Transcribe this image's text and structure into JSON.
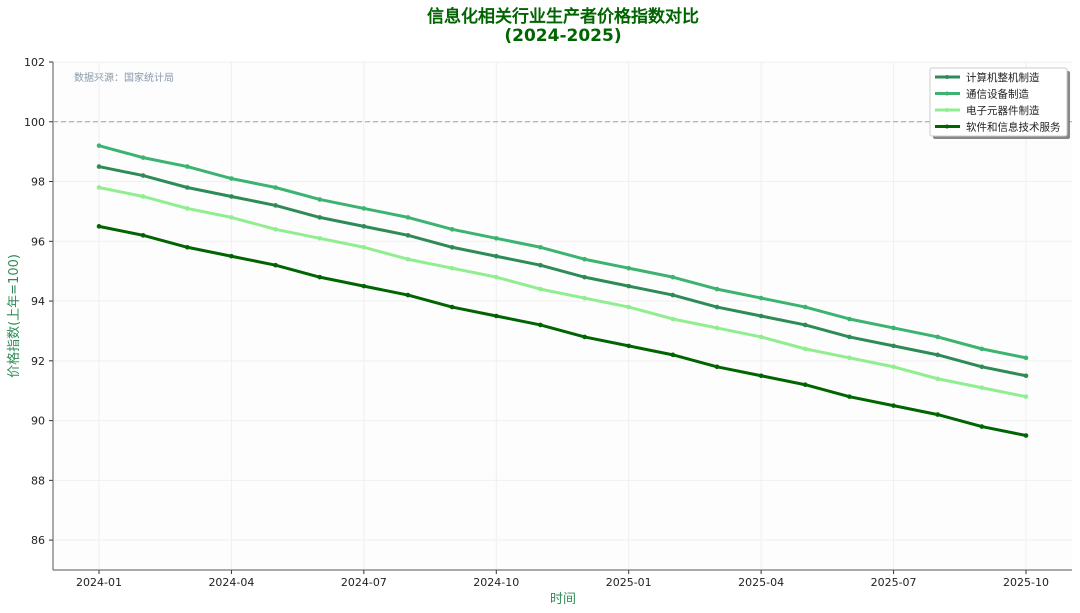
{
  "chart_data": {
    "type": "line",
    "title": "信息化相关行业生产者价格指数对比",
    "subtitle": "(2024-2025)",
    "xlabel": "时间",
    "ylabel": "价格指数(上年=100)",
    "annotation": "数据来源：国家统计局",
    "reference_line": 100,
    "ylim": [
      85,
      102
    ],
    "yticks": [
      86,
      88,
      90,
      92,
      94,
      96,
      98,
      100,
      102
    ],
    "x": [
      "2024-01",
      "2024-02",
      "2024-03",
      "2024-04",
      "2024-05",
      "2024-06",
      "2024-07",
      "2024-08",
      "2024-09",
      "2024-10",
      "2024-11",
      "2024-12",
      "2025-01",
      "2025-02",
      "2025-03",
      "2025-04",
      "2025-05",
      "2025-06",
      "2025-07",
      "2025-08",
      "2025-09",
      "2025-10"
    ],
    "xticks": [
      "2024-01",
      "2024-04",
      "2024-07",
      "2024-10",
      "2025-01",
      "2025-04",
      "2025-07",
      "2025-10"
    ],
    "grid": true,
    "legend_position": "top-right",
    "series": [
      {
        "name": "计算机整机制造",
        "color": "#2e8b57",
        "values": [
          98.5,
          98.2,
          97.8,
          97.5,
          97.2,
          96.8,
          96.5,
          96.2,
          95.8,
          95.5,
          95.2,
          94.8,
          94.5,
          94.2,
          93.8,
          93.5,
          93.2,
          92.8,
          92.5,
          92.2,
          91.8,
          91.5
        ]
      },
      {
        "name": "通信设备制造",
        "color": "#3cb371",
        "values": [
          99.2,
          98.8,
          98.5,
          98.1,
          97.8,
          97.4,
          97.1,
          96.8,
          96.4,
          96.1,
          95.8,
          95.4,
          95.1,
          94.8,
          94.4,
          94.1,
          93.8,
          93.4,
          93.1,
          92.8,
          92.4,
          92.1
        ]
      },
      {
        "name": "电子元器件制造",
        "color": "#90ee90",
        "values": [
          97.8,
          97.5,
          97.1,
          96.8,
          96.4,
          96.1,
          95.8,
          95.4,
          95.1,
          94.8,
          94.4,
          94.1,
          93.8,
          93.4,
          93.1,
          92.8,
          92.4,
          92.1,
          91.8,
          91.4,
          91.1,
          90.8
        ]
      },
      {
        "name": "软件和信息技术服务",
        "color": "#006400",
        "values": [
          96.5,
          96.2,
          95.8,
          95.5,
          95.2,
          94.8,
          94.5,
          94.2,
          93.8,
          93.5,
          93.2,
          92.8,
          92.5,
          92.2,
          91.8,
          91.5,
          91.2,
          90.8,
          90.5,
          90.2,
          89.8,
          89.5
        ]
      }
    ]
  }
}
